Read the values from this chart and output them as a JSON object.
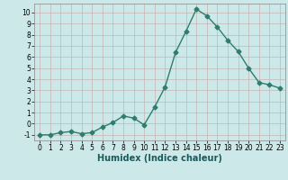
{
  "x": [
    0,
    1,
    2,
    3,
    4,
    5,
    6,
    7,
    8,
    9,
    10,
    11,
    12,
    13,
    14,
    15,
    16,
    17,
    18,
    19,
    20,
    21,
    22,
    23
  ],
  "y": [
    -1,
    -1,
    -0.8,
    -0.7,
    -0.9,
    -0.8,
    -0.3,
    0.1,
    0.7,
    0.5,
    -0.1,
    1.5,
    3.3,
    6.4,
    8.3,
    10.3,
    9.7,
    8.7,
    7.5,
    6.5,
    5.0,
    3.7,
    3.5,
    3.2
  ],
  "color": "#2e7d6e",
  "bg_color": "#cce8e8",
  "grid_color": "#b8d4d4",
  "xlabel": "Humidex (Indice chaleur)",
  "ylim": [
    -1.5,
    10.8
  ],
  "xlim": [
    -0.5,
    23.5
  ],
  "yticks": [
    -1,
    0,
    1,
    2,
    3,
    4,
    5,
    6,
    7,
    8,
    9,
    10
  ],
  "xticks": [
    0,
    1,
    2,
    3,
    4,
    5,
    6,
    7,
    8,
    9,
    10,
    11,
    12,
    13,
    14,
    15,
    16,
    17,
    18,
    19,
    20,
    21,
    22,
    23
  ],
  "marker": "D",
  "markersize": 2.5,
  "linewidth": 1.0,
  "xlabel_fontsize": 7,
  "tick_fontsize": 5.5
}
